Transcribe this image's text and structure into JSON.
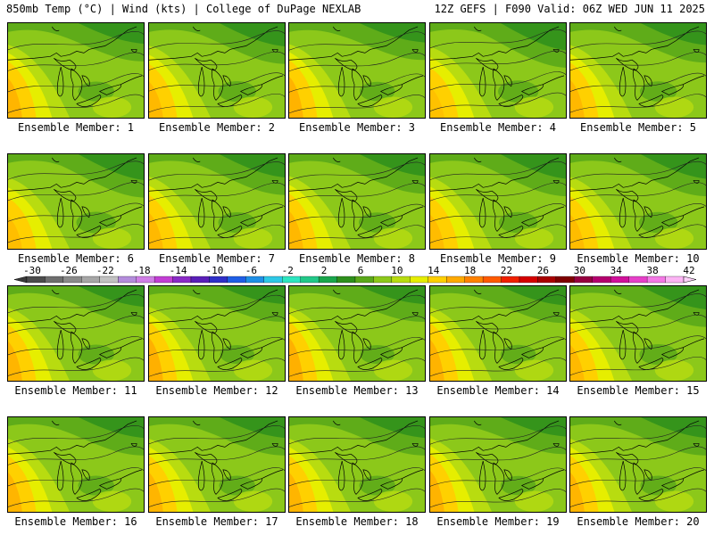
{
  "header": {
    "left": "850mb Temp (°C) | Wind (kts) | College of DuPage NEXLAB",
    "right": "12Z GEFS | F090 Valid: 06Z WED JUN 11 2025"
  },
  "members": [
    {
      "label": "Ensemble Member: 1",
      "warmth": 0.55
    },
    {
      "label": "Ensemble Member: 2",
      "warmth": 0.45
    },
    {
      "label": "Ensemble Member: 3",
      "warmth": 0.6
    },
    {
      "label": "Ensemble Member: 4",
      "warmth": 0.3
    },
    {
      "label": "Ensemble Member: 5",
      "warmth": 0.5
    },
    {
      "label": "Ensemble Member: 6",
      "warmth": 0.35
    },
    {
      "label": "Ensemble Member: 7",
      "warmth": 0.45
    },
    {
      "label": "Ensemble Member: 8",
      "warmth": 0.5
    },
    {
      "label": "Ensemble Member: 9",
      "warmth": 0.4
    },
    {
      "label": "Ensemble Member: 10",
      "warmth": 0.4
    },
    {
      "label": "Ensemble Member: 11",
      "warmth": 0.55
    },
    {
      "label": "Ensemble Member: 12",
      "warmth": 0.65
    },
    {
      "label": "Ensemble Member: 13",
      "warmth": 0.65
    },
    {
      "label": "Ensemble Member: 14",
      "warmth": 0.6
    },
    {
      "label": "Ensemble Member: 15",
      "warmth": 0.45
    },
    {
      "label": "Ensemble Member: 16",
      "warmth": 0.55
    },
    {
      "label": "Ensemble Member: 17",
      "warmth": 0.55
    },
    {
      "label": "Ensemble Member: 18",
      "warmth": 0.55
    },
    {
      "label": "Ensemble Member: 19",
      "warmth": 0.6
    },
    {
      "label": "Ensemble Member: 20",
      "warmth": 0.55
    }
  ],
  "colorbar": {
    "labels": [
      "-30",
      "-26",
      "-22",
      "-18",
      "-14",
      "-10",
      "-6",
      "-2",
      "2",
      "6",
      "10",
      "14",
      "18",
      "22",
      "26",
      "30",
      "34",
      "38",
      "42"
    ],
    "colors": [
      "#4c4c4c",
      "#6e6e6e",
      "#8a8a8a",
      "#a6a6a6",
      "#c2c2c2",
      "#b48cdc",
      "#d07ee6",
      "#c23ed4",
      "#8a2ac6",
      "#5a1fb8",
      "#2f2fc8",
      "#1f5ee6",
      "#1f8fe6",
      "#2ec8e6",
      "#2ee6c0",
      "#22c888",
      "#1aa64c",
      "#2e8f1c",
      "#5aa81a",
      "#8cc81a",
      "#b8dc10",
      "#e6ee00",
      "#ffd000",
      "#ffaa00",
      "#ff8200",
      "#ff5a00",
      "#f02000",
      "#d40000",
      "#a80000",
      "#7e0000",
      "#960040",
      "#b4006e",
      "#d0109a",
      "#e640c8",
      "#f478e6",
      "#fcb4f4"
    ]
  },
  "palette": {
    "deep_green": "#2e8f1c",
    "green": "#5aa81a",
    "light_green": "#8cc81a",
    "yellow_green": "#b8dc10",
    "yellow": "#e6ee00",
    "gold": "#ffd000",
    "orange": "#ffaa00"
  }
}
